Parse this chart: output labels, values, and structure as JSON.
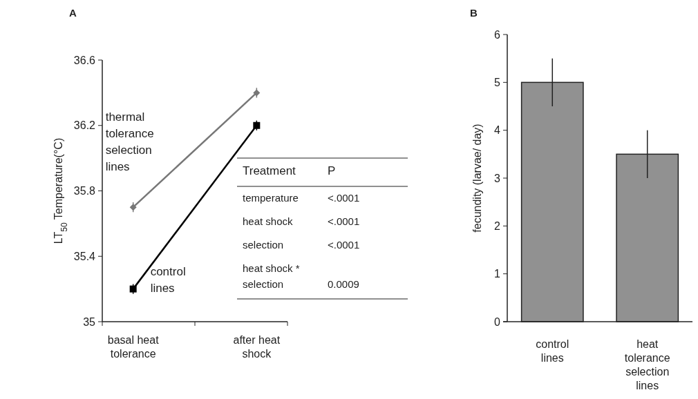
{
  "chart_data": [
    {
      "type": "line",
      "title": "A",
      "ylabel": "LT$_{50}$ Temperature(°C)",
      "categories": [
        "basal heat\ntolerance",
        "after heat\nshock"
      ],
      "ylim": [
        35,
        36.6
      ],
      "yticks": [
        35,
        35.4,
        35.8,
        36.2,
        36.6
      ],
      "grid": false,
      "series": [
        {
          "name": "thermal\ntolerance\nselection\nlines",
          "color": "#777777",
          "marker": "diamond",
          "values": [
            35.7,
            36.4
          ],
          "errors": [
            0.03,
            0.03
          ]
        },
        {
          "name": "control\nlines",
          "color": "#000000",
          "marker": "square",
          "values": [
            35.2,
            36.2
          ],
          "errors": [
            0.03,
            0.03
          ]
        }
      ],
      "annotations": [
        "Treatment",
        "P",
        "temperature",
        "<.0001",
        "heat shock",
        "<.0001",
        "selection",
        "<.0001",
        "heat shock *\nselection",
        "0.0009"
      ]
    },
    {
      "type": "bar",
      "title": "B",
      "ylabel": "fecundity (larvae/ day)",
      "categories": [
        "control\nlines",
        "heat\ntolerance\nselection\nlines"
      ],
      "values": [
        5,
        3.5
      ],
      "errors": [
        0.5,
        0.5
      ],
      "color": "#919191",
      "ylim": [
        0,
        6
      ],
      "yticks": [
        0,
        1,
        2,
        3,
        4,
        5,
        6
      ],
      "grid": false
    }
  ]
}
